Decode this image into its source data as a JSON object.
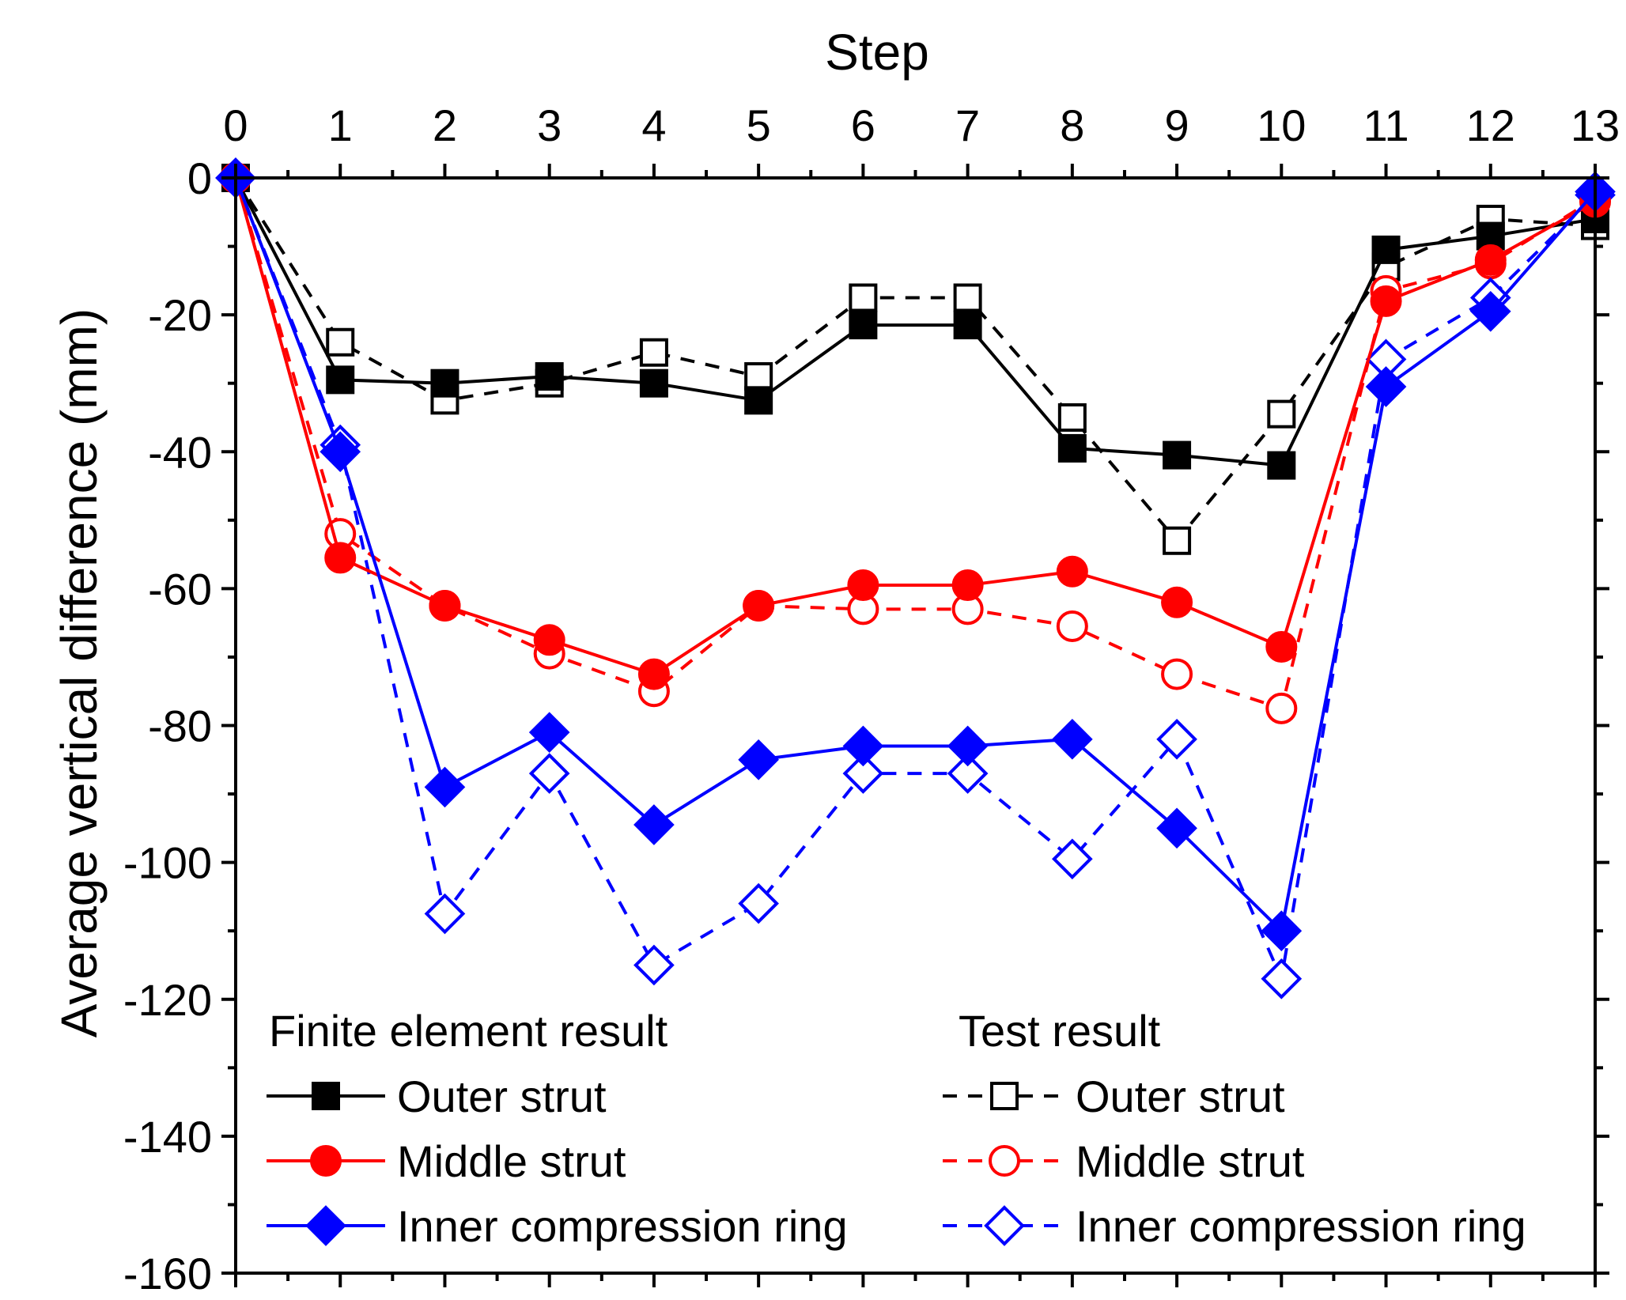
{
  "chart_data": {
    "type": "line",
    "xlabel": "Step",
    "ylabel": "Average vertical difference (mm)",
    "x_axis_position": "top",
    "xlim": [
      0,
      13
    ],
    "ylim": [
      -160,
      0
    ],
    "x_ticks": [
      0,
      1,
      2,
      3,
      4,
      5,
      6,
      7,
      8,
      9,
      10,
      11,
      12,
      13
    ],
    "y_ticks": [
      0,
      -20,
      -40,
      -60,
      -80,
      -100,
      -120,
      -140,
      -160
    ],
    "x": [
      0,
      1,
      2,
      3,
      4,
      5,
      6,
      7,
      8,
      9,
      10,
      11,
      12,
      13
    ],
    "legend": {
      "fe_heading": "Finite element result",
      "test_heading": "Test result",
      "placement": "bottom-left"
    },
    "series": [
      {
        "name": "Outer strut",
        "group": "fe",
        "color": "#000000",
        "marker": "square",
        "filled": true,
        "dashed": false,
        "values": [
          0,
          -29.5,
          -30,
          -29,
          -30,
          -32.5,
          -21.5,
          -21.5,
          -39.5,
          -40.5,
          -42,
          -10.5,
          -8.5,
          -6
        ]
      },
      {
        "name": "Middle strut",
        "group": "fe",
        "color": "#ff0000",
        "marker": "circle",
        "filled": true,
        "dashed": false,
        "values": [
          0,
          -55.5,
          -62.5,
          -67.5,
          -72.5,
          -62.5,
          -59.5,
          -59.5,
          -57.5,
          -62,
          -68.5,
          -18,
          -12,
          -3.5
        ]
      },
      {
        "name": "Inner compression ring",
        "group": "fe",
        "color": "#0000ff",
        "marker": "diamond",
        "filled": true,
        "dashed": false,
        "values": [
          0,
          -40,
          -89,
          -81,
          -94.5,
          -85,
          -83,
          -83,
          -82,
          -95,
          -110,
          -30.5,
          -19.5,
          -2
        ]
      },
      {
        "name": "Outer strut",
        "group": "test",
        "color": "#000000",
        "marker": "square",
        "filled": false,
        "dashed": true,
        "values": [
          0,
          -24,
          -32.5,
          -30,
          -25.5,
          -29,
          -17.5,
          -17.5,
          -35,
          -53,
          -34.5,
          -13,
          -6,
          -7
        ]
      },
      {
        "name": "Middle strut",
        "group": "test",
        "color": "#ff0000",
        "marker": "circle",
        "filled": false,
        "dashed": true,
        "values": [
          0,
          -52,
          -62.5,
          -69.5,
          -75,
          -62.5,
          -63,
          -63,
          -65.5,
          -72.5,
          -77.5,
          -16.5,
          -12.5,
          -3
        ]
      },
      {
        "name": "Inner compression ring",
        "group": "test",
        "color": "#0000ff",
        "marker": "diamond",
        "filled": false,
        "dashed": true,
        "values": [
          0,
          -39,
          -107.5,
          -87,
          -115,
          -106,
          -87,
          -87,
          -99.5,
          -82,
          -117,
          -26.5,
          -17.5,
          -2.5
        ]
      }
    ]
  }
}
